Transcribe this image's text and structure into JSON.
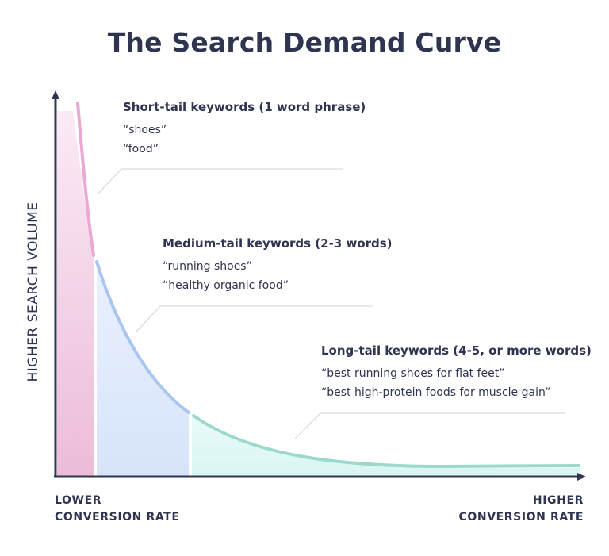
{
  "title": "The Search Demand Curve",
  "y_axis_label": "HIGHER SEARCH VOLUME",
  "x_axis": {
    "left_line1": "LOWER",
    "left_line2": "CONVERSION RATE",
    "right_line1": "HIGHER",
    "right_line2": "CONVERSION RATE"
  },
  "segments": [
    {
      "heading": "Short-tail keywords (1 word phrase)",
      "examples": [
        "“shoes”",
        "“food”"
      ],
      "color": "#e9a9d2",
      "fill": "#f1c8e1"
    },
    {
      "heading": "Medium-tail keywords (2-3 words)",
      "examples": [
        "“running shoes”",
        "“healthy organic food”"
      ],
      "color": "#a9c6f1",
      "fill": "#dde8fb"
    },
    {
      "heading": "Long-tail keywords (4-5, or more words)",
      "examples": [
        "“best running shoes for flat feet”",
        "“best high-protein foods for muscle gain”"
      ],
      "color": "#9bd8cd",
      "fill": "#dff7f4"
    }
  ],
  "colors": {
    "text": "#2f3550",
    "axis": "#2f3550",
    "callout": "#d9dbe2"
  }
}
